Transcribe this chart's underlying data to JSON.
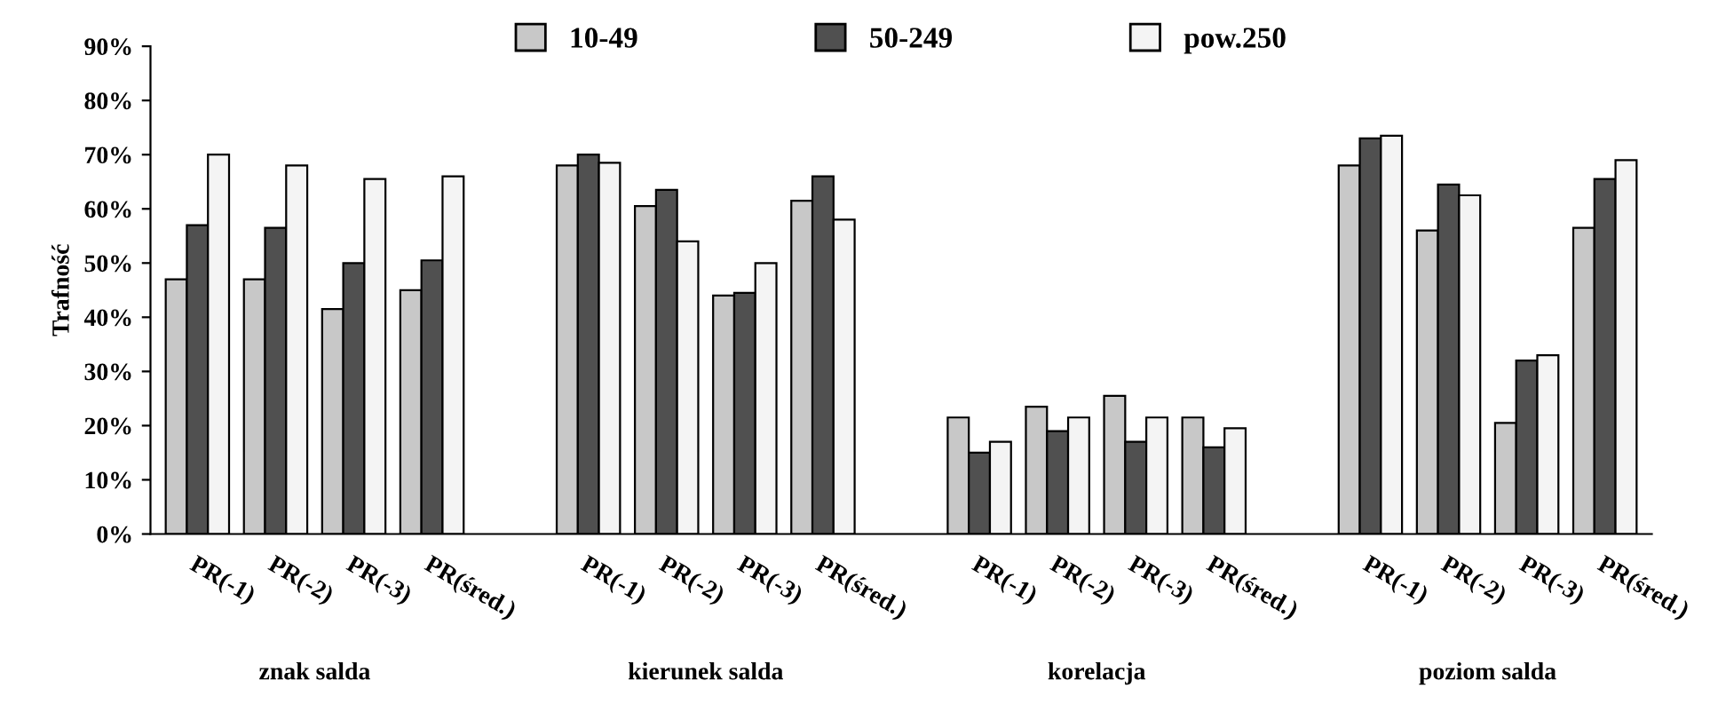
{
  "chart_data": {
    "type": "bar",
    "ylabel": "Trafność",
    "categories": [
      "PR(-1)",
      "PR(-2)",
      "PR(-3)",
      "PR(śred.)",
      null,
      "PR(-1)",
      "PR(-2)",
      "PR(-3)",
      "PR(śred.)",
      null,
      "PR(-1)",
      "PR(-2)",
      "PR(-3)",
      "PR(śred.)",
      null,
      "PR(-1)",
      "PR(-2)",
      "PR(-3)",
      "PR(śred.)"
    ],
    "series": [
      {
        "name": "10-49",
        "color": "#c8c8c8",
        "values": [
          47,
          47,
          41.5,
          45,
          null,
          68,
          60.5,
          44,
          61.5,
          null,
          21.5,
          23.5,
          25.5,
          21.5,
          null,
          68,
          56,
          20.5,
          56.5
        ]
      },
      {
        "name": "50-249",
        "color": "#505050",
        "values": [
          57,
          56.5,
          50,
          50.5,
          null,
          70,
          63.5,
          44.5,
          66,
          null,
          15,
          19,
          17,
          16,
          null,
          73,
          64.5,
          32,
          65.5
        ]
      },
      {
        "name": "pow.250",
        "color": "#f4f4f4",
        "values": [
          70,
          68,
          65.5,
          66,
          null,
          68.5,
          54,
          50,
          58,
          null,
          17,
          21.5,
          21.5,
          19.5,
          null,
          73.5,
          62.5,
          33,
          69
        ]
      }
    ],
    "ylim": [
      0,
      90
    ],
    "yticks": [
      {
        "value": 0,
        "label": "0%"
      },
      {
        "value": 10,
        "label": "10%"
      },
      {
        "value": 20,
        "label": "20%"
      },
      {
        "value": 30,
        "label": "30%"
      },
      {
        "value": 40,
        "label": "40%"
      },
      {
        "value": 50,
        "label": "50%"
      },
      {
        "value": 60,
        "label": "60%"
      },
      {
        "value": 70,
        "label": "70%"
      },
      {
        "value": 80,
        "label": "80%"
      },
      {
        "value": 90,
        "label": "90%"
      }
    ],
    "grid": false,
    "legend": "top",
    "annotations": [
      "znak salda",
      "kierunek salda",
      "korelacja",
      "poziom salda"
    ]
  }
}
